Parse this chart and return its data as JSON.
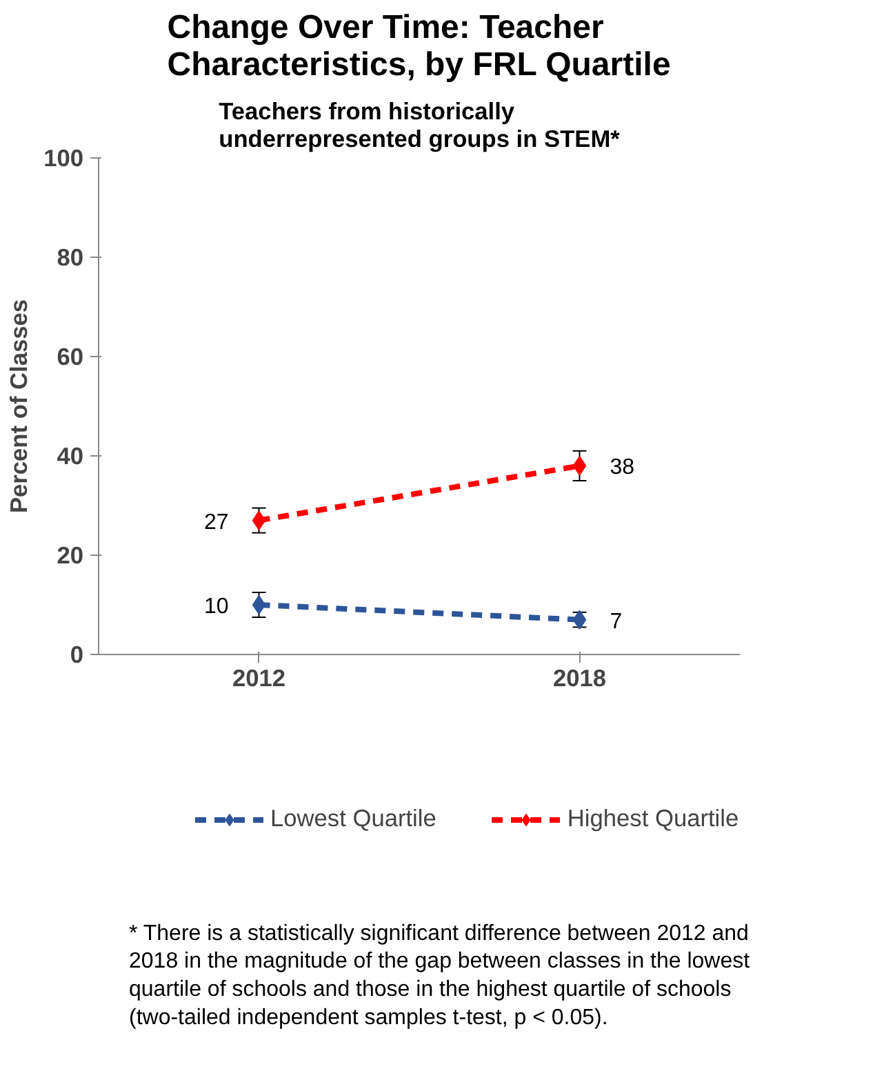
{
  "chart_data": {
    "type": "line",
    "title": "Change Over Time: Teacher Characteristics, by FRL Quartile",
    "subtitle": "Teachers from historically underrepresented groups in STEM*",
    "ylabel": "Percent of Classes",
    "categories": [
      "2012",
      "2018"
    ],
    "series": [
      {
        "name": "Lowest Quartile",
        "color": "#2e5597",
        "values": [
          10,
          7
        ],
        "errors": [
          2.5,
          1.5
        ]
      },
      {
        "name": "Highest Quartile",
        "color": "#ff0000",
        "values": [
          27,
          38
        ],
        "errors": [
          2.5,
          3
        ]
      }
    ],
    "ylim": [
      0,
      100
    ],
    "yticks": [
      0,
      20,
      40,
      60,
      80,
      100
    ],
    "grid": false,
    "legend": "bottom",
    "marker": "diamond",
    "line_style": "dashed",
    "data_labels": true,
    "annotations": [
      "* There is a statistically significant difference between 2012 and 2018 in the magnitude of the gap between classes in the lowest quartile of schools and those in the highest quartile of schools (two-tailed independent samples t-test, p < 0.05)."
    ]
  }
}
